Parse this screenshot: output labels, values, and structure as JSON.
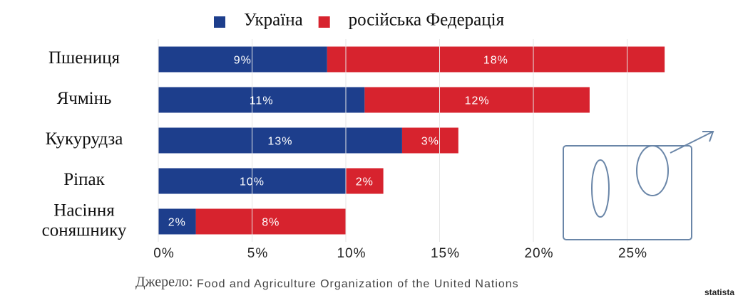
{
  "chart_data": {
    "type": "bar",
    "orientation": "horizontal",
    "stacked": true,
    "categories": [
      "Пшениця",
      "Ячмінь",
      "Кукурудза",
      "Ріпак",
      "Насіння соняшнику"
    ],
    "series": [
      {
        "name": "Україна",
        "color": "#1d3e8c",
        "values": [
          9,
          11,
          13,
          10,
          2
        ],
        "value_labels": [
          "9%",
          "11%",
          "13%",
          "10%",
          "2%"
        ]
      },
      {
        "name": "російська Федерація",
        "color": "#d7232e",
        "values": [
          18,
          12,
          3,
          2,
          8
        ],
        "value_labels": [
          "18%",
          "12%",
          "3%",
          "2%",
          "8%"
        ]
      }
    ],
    "xlim": [
      0,
      30
    ],
    "xticks": [
      {
        "value": 0,
        "label": "0%"
      },
      {
        "value": 5,
        "label": "5%"
      },
      {
        "value": 10,
        "label": "10%"
      },
      {
        "value": 15,
        "label": "15%"
      },
      {
        "value": 20,
        "label": "20%"
      },
      {
        "value": 25,
        "label": "25%"
      }
    ],
    "grid": true,
    "legend": "top",
    "source_label": "Джерело:",
    "source": "Food and Agriculture Organization of the United Nations",
    "brand": "statista"
  }
}
